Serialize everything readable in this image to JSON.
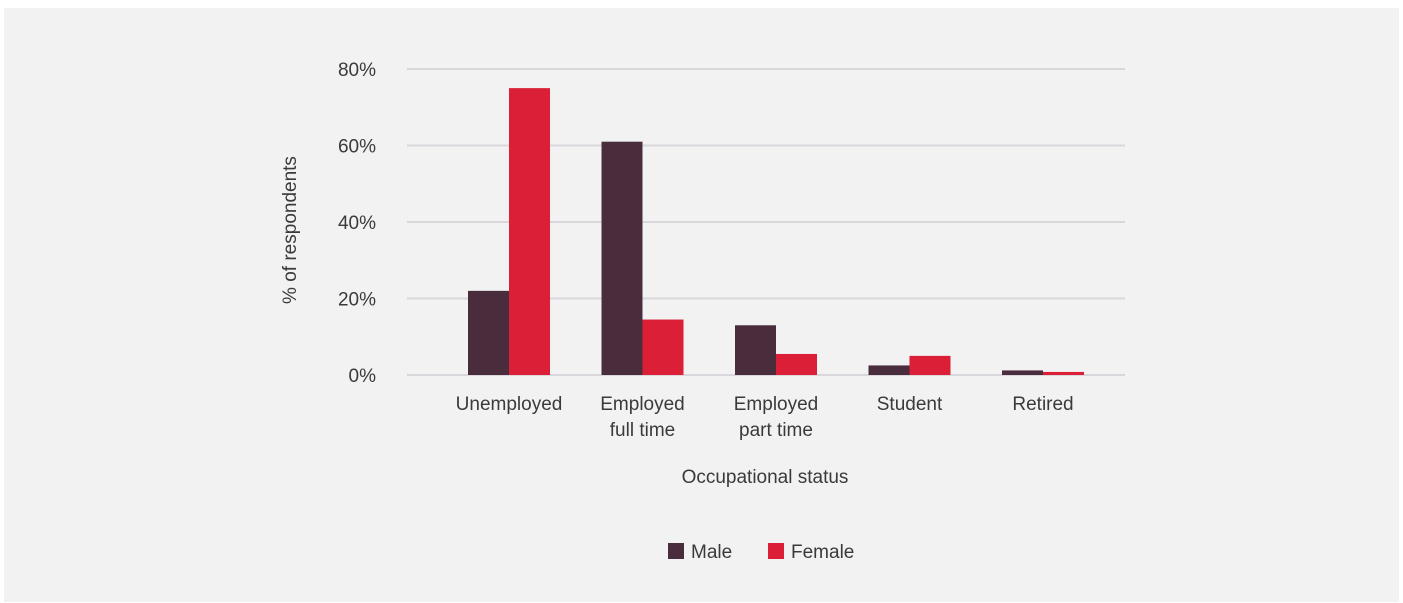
{
  "chart_data": {
    "type": "bar",
    "title": "",
    "xlabel": "Occupational status",
    "ylabel": "% of respondents",
    "ylim": [
      0,
      80
    ],
    "yticks": [
      0,
      20,
      40,
      60,
      80
    ],
    "ytick_suffix": "%",
    "grid": true,
    "legend_position": "bottom-center",
    "categories": [
      [
        "Unemployed"
      ],
      [
        "Employed",
        "full time"
      ],
      [
        "Employed",
        "part time"
      ],
      [
        "Student"
      ],
      [
        "Retired"
      ]
    ],
    "series": [
      {
        "name": "Male",
        "color": "#4a2d3d",
        "values": [
          22,
          61,
          13,
          2.5,
          1.2
        ]
      },
      {
        "name": "Female",
        "color": "#da1f36",
        "values": [
          75,
          14.5,
          5.5,
          5,
          0.8
        ]
      }
    ]
  },
  "colors": {
    "background": "#f2f2f2",
    "gridline": "#d9d6dc",
    "text": "#3a3a3a"
  }
}
